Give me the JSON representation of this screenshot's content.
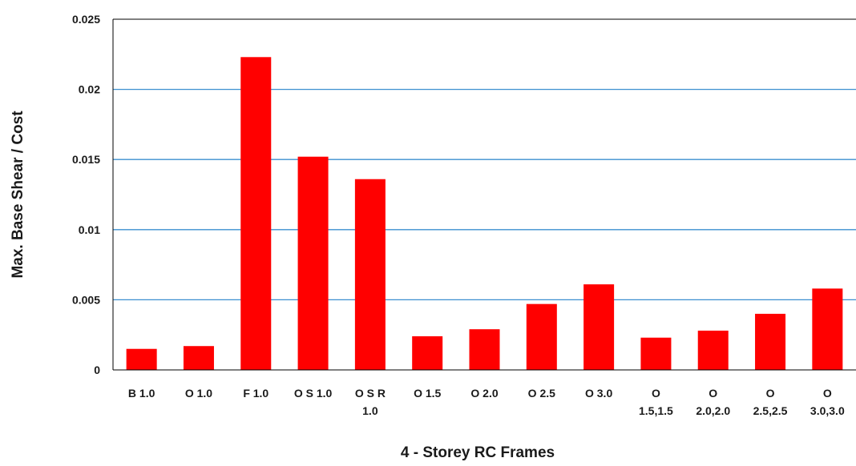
{
  "chart_data": {
    "type": "bar",
    "categories": [
      "B 1.0",
      "O 1.0",
      "F 1.0",
      "O S 1.0",
      "O S R 1.0",
      "O 1.5",
      "O 2.0",
      "O 2.5",
      "O 3.0",
      "O 1.5,1.5",
      "O 2.0,2.0",
      "O 2.5,2.5",
      "O 3.0,3.0"
    ],
    "category_label_lines": [
      [
        "B 1.0"
      ],
      [
        "O 1.0"
      ],
      [
        "F 1.0"
      ],
      [
        "O S 1.0"
      ],
      [
        "O S R",
        "1.0"
      ],
      [
        "O 1.5"
      ],
      [
        "O 2.0"
      ],
      [
        "O 2.5"
      ],
      [
        "O 3.0"
      ],
      [
        "O",
        "1.5,1.5"
      ],
      [
        "O",
        "2.0,2.0"
      ],
      [
        "O",
        "2.5,2.5"
      ],
      [
        "O",
        "3.0,3.0"
      ]
    ],
    "values": [
      0.0015,
      0.0017,
      0.0223,
      0.0152,
      0.0136,
      0.0024,
      0.0029,
      0.0047,
      0.0061,
      0.0023,
      0.0028,
      0.004,
      0.0058
    ],
    "title": "",
    "xlabel": "4 - Storey RC Frames",
    "ylabel": "Max. Base Shear / Cost",
    "ylim": [
      0,
      0.025
    ],
    "yticks": [
      0,
      0.005,
      0.01,
      0.015,
      0.02,
      0.025
    ],
    "ytick_labels": [
      "0",
      "0.005",
      "0.01",
      "0.015",
      "0.02",
      "0.025"
    ],
    "grid": true,
    "legend": "none",
    "colors": {
      "bar": "#ff0000",
      "gridline": "#3b8fd0",
      "axis": "#000000",
      "text": "#1a1a1a"
    }
  }
}
